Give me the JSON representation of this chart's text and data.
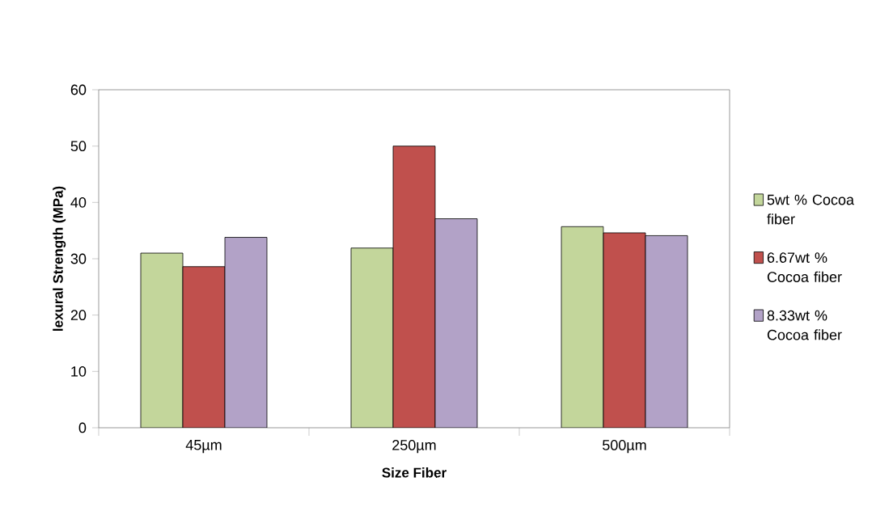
{
  "chart_data": {
    "type": "bar",
    "xlabel": "Size Fiber",
    "ylabel": "lexural Strength (MPa)",
    "categories": [
      "45µm",
      "250µm",
      "500µm"
    ],
    "series": [
      {
        "name": "5wt % Cocoa fiber",
        "color": "#c3d69b",
        "values": [
          31.0,
          31.9,
          35.7
        ]
      },
      {
        "name": "6.67wt % Cocoa fiber",
        "color": "#c0504d",
        "values": [
          28.6,
          50.0,
          34.6
        ]
      },
      {
        "name": "8.33wt % Cocoa fiber",
        "color": "#b2a2c7",
        "values": [
          33.8,
          37.1,
          34.1
        ]
      }
    ],
    "ylim": [
      0,
      60
    ],
    "yticks": [
      0,
      10,
      20,
      30,
      40,
      50,
      60
    ],
    "grid": false,
    "legend": "right"
  }
}
